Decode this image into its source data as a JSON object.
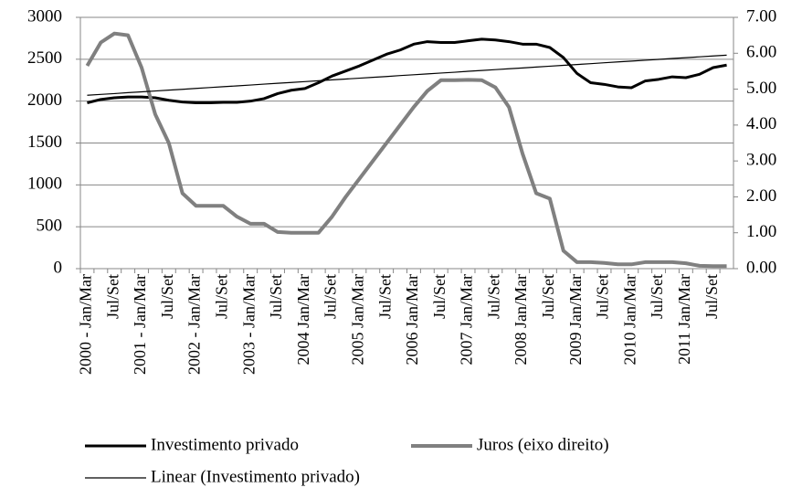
{
  "chart_data": {
    "type": "line",
    "categories": [
      "2000 - Jan/Mar",
      null,
      "Jul/Set",
      null,
      "2001 - Jan/Mar",
      null,
      "Jul/Set",
      null,
      "2002 - Jan/Mar",
      null,
      "Jul/Set",
      null,
      "2003 - Jan/Mar",
      null,
      "Jul/Set",
      null,
      "2004 Jan/Mar",
      null,
      "Jul/Set",
      null,
      "2005 Jan/Mar",
      null,
      "Jul/Set",
      null,
      "2006 Jan/Mar",
      null,
      "Jul/Set",
      null,
      "2007 Jan/Mar",
      null,
      "Jul/Set",
      null,
      "2008 Jan/Mar",
      null,
      "Jul/Set",
      null,
      "2009 Jan/Mar",
      null,
      "Jul/Set",
      null,
      "2010 Jan/Mar",
      null,
      "Jul/Set",
      null,
      "2011 Jan/Mar",
      null,
      "Jul/Set",
      null
    ],
    "series": [
      {
        "name": "Investimento privado",
        "color": "#000000",
        "width": 3,
        "values": [
          1980,
          2020,
          2040,
          2050,
          2050,
          2040,
          2010,
          1990,
          1980,
          1980,
          1985,
          1985,
          2000,
          2030,
          2090,
          2130,
          2150,
          2220,
          2300,
          2360,
          2420,
          2490,
          2560,
          2610,
          2680,
          2710,
          2700,
          2700,
          2720,
          2740,
          2730,
          2710,
          2680,
          2680,
          2640,
          2520,
          2330,
          2220,
          2200,
          2170,
          2160,
          2240,
          2260,
          2290,
          2280,
          2320,
          2400,
          2430
        ]
      },
      {
        "name": "Juros (eixo direito)",
        "color": "#808080",
        "width": 4,
        "axis": "y2",
        "values": [
          5.65,
          6.3,
          6.55,
          6.5,
          5.6,
          4.3,
          3.5,
          2.1,
          1.75,
          1.75,
          1.75,
          1.45,
          1.25,
          1.25,
          1.02,
          1.0,
          1.0,
          1.0,
          1.45,
          2.0,
          2.5,
          3.0,
          3.5,
          4.0,
          4.5,
          4.95,
          5.25,
          5.25,
          5.26,
          5.25,
          5.05,
          4.5,
          3.2,
          2.1,
          1.95,
          0.5,
          0.18,
          0.18,
          0.16,
          0.12,
          0.12,
          0.18,
          0.18,
          0.18,
          0.15,
          0.08,
          0.07,
          0.07
        ]
      },
      {
        "name": "Linear (Investimento privado)",
        "color": "#000000",
        "width": 1.2,
        "values": [
          2070,
          2080,
          2090,
          2101,
          2111,
          2121,
          2131,
          2141,
          2152,
          2162,
          2172,
          2182,
          2192,
          2203,
          2213,
          2223,
          2233,
          2243,
          2254,
          2264,
          2274,
          2284,
          2294,
          2305,
          2315,
          2325,
          2335,
          2345,
          2356,
          2366,
          2376,
          2386,
          2396,
          2407,
          2417,
          2427,
          2437,
          2447,
          2458,
          2468,
          2478,
          2488,
          2498,
          2509,
          2519,
          2529,
          2539,
          2549
        ]
      }
    ],
    "ylim": [
      0,
      3000
    ],
    "yticks": [
      0,
      500,
      1000,
      1500,
      2000,
      2500,
      3000
    ],
    "y2lim": [
      0,
      7
    ],
    "y2ticks": [
      {
        "value": 0,
        "label": "0.00"
      },
      {
        "value": 1,
        "label": "1.00"
      },
      {
        "value": 2,
        "label": "2.00"
      },
      {
        "value": 3,
        "label": "3.00"
      },
      {
        "value": 4,
        "label": "4.00"
      },
      {
        "value": 5,
        "label": "5.00"
      },
      {
        "value": 6,
        "label": "6.00"
      },
      {
        "value": 7,
        "label": "7.00"
      }
    ],
    "grid": true
  }
}
